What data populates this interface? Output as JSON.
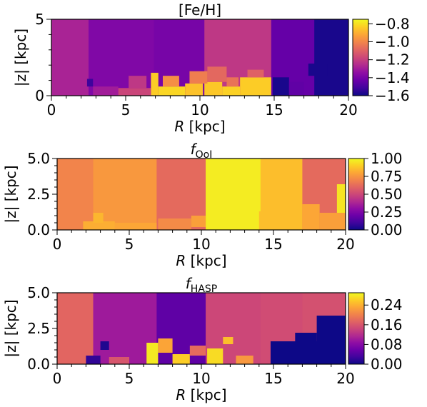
{
  "colormap": {
    "name": "plasma",
    "stops": [
      "#0d0887",
      "#41049d",
      "#6a00a8",
      "#8f0da4",
      "#b12a90",
      "#cc4778",
      "#e16462",
      "#f2844b",
      "#fca636",
      "#fcce25",
      "#f0f921"
    ]
  },
  "chart_data": [
    {
      "type": "heatmap",
      "title": "[Fe/H]",
      "xlabel": "R [kpc]",
      "ylabel": "|z| [kpc]",
      "xlim": [
        0,
        20
      ],
      "ylim": [
        0,
        5
      ],
      "x_ticks": [
        "0",
        "5",
        "10",
        "15",
        "20"
      ],
      "y_ticks": [
        "0",
        "5"
      ],
      "colorbar": {
        "min": -1.6,
        "max": -0.75,
        "ticks": [
          "−0.8",
          "−1.0",
          "−1.2",
          "−1.4",
          "−1.6"
        ],
        "tick_values": [
          -0.8,
          -1.0,
          -1.2,
          -1.4,
          -1.6
        ]
      },
      "columns": [
        {
          "r": [
            0,
            2.5
          ],
          "value": -1.28
        },
        {
          "r": [
            2.5,
            6.9
          ],
          "value": -1.38
        },
        {
          "r": [
            6.9,
            10.3
          ],
          "value": -1.4
        },
        {
          "r": [
            10.3,
            14.8
          ],
          "value": -1.22
        },
        {
          "r": [
            14.8,
            17.7
          ],
          "value": -1.44
        },
        {
          "r": [
            17.7,
            20
          ],
          "value": -1.58
        }
      ],
      "cells": [
        {
          "r": [
            17.3,
            18.6
          ],
          "z": [
            1.3,
            2.1
          ],
          "value": -1.58
        },
        {
          "r": [
            14.9,
            16.0
          ],
          "z": [
            0,
            1.2
          ],
          "value": -1.58
        },
        {
          "r": [
            16.0,
            17.0
          ],
          "z": [
            0,
            0.9
          ],
          "value": -1.45
        },
        {
          "r": [
            2.4,
            2.8
          ],
          "z": [
            0.6,
            1.1
          ],
          "value": -1.52
        },
        {
          "r": [
            6.7,
            7.2
          ],
          "z": [
            0,
            1.5
          ],
          "value": -0.84
        },
        {
          "r": [
            7.2,
            9.0
          ],
          "z": [
            0,
            0.6
          ],
          "value": -0.82
        },
        {
          "r": [
            9.0,
            10.2
          ],
          "z": [
            0,
            0.8
          ],
          "value": -0.86
        },
        {
          "r": [
            10.3,
            11.5
          ],
          "z": [
            0,
            0.9
          ],
          "value": -0.85
        },
        {
          "r": [
            11.5,
            12.7
          ],
          "z": [
            0,
            0.6
          ],
          "value": -0.83
        },
        {
          "r": [
            12.7,
            14.8
          ],
          "z": [
            0,
            1.2
          ],
          "value": -0.84
        },
        {
          "r": [
            4.5,
            6.7
          ],
          "z": [
            0,
            0.5
          ],
          "value": -1.18
        },
        {
          "r": [
            5.2,
            6.4
          ],
          "z": [
            0.5,
            1.3
          ],
          "value": -1.22
        },
        {
          "r": [
            7.5,
            8.6
          ],
          "z": [
            0.6,
            1.3
          ],
          "value": -0.98
        },
        {
          "r": [
            9.3,
            10.5
          ],
          "z": [
            0.8,
            1.6
          ],
          "value": -1.02
        },
        {
          "r": [
            10.5,
            11.8
          ],
          "z": [
            0.9,
            1.9
          ],
          "value": -1.08
        },
        {
          "r": [
            11.8,
            12.6
          ],
          "z": [
            0.6,
            1.2
          ],
          "value": -1.05
        },
        {
          "r": [
            13.2,
            14.3
          ],
          "z": [
            1.2,
            1.7
          ],
          "value": -1.1
        },
        {
          "r": [
            2.8,
            4.5
          ],
          "z": [
            0,
            0.6
          ],
          "value": -1.3
        }
      ]
    },
    {
      "type": "heatmap",
      "title": "f_OoI",
      "xlabel": "R [kpc]",
      "ylabel": "|z| [kpc]",
      "xlim": [
        0,
        20
      ],
      "ylim": [
        0,
        5
      ],
      "x_ticks": [
        "0",
        "5",
        "10",
        "15",
        "20"
      ],
      "y_ticks": [
        "0.0",
        "2.5",
        "5.0"
      ],
      "colorbar": {
        "min": 0.0,
        "max": 1.0,
        "ticks": [
          "1.00",
          "0.75",
          "0.50",
          "0.25",
          "0.00"
        ],
        "tick_values": [
          1.0,
          0.75,
          0.5,
          0.25,
          0.0
        ]
      },
      "columns": [
        {
          "r": [
            0,
            2.5
          ],
          "value": 0.7
        },
        {
          "r": [
            2.5,
            6.9
          ],
          "value": 0.76
        },
        {
          "r": [
            6.9,
            10.3
          ],
          "value": 0.62
        },
        {
          "r": [
            10.3,
            14.1
          ],
          "value": 0.97
        },
        {
          "r": [
            14.1,
            17.0
          ],
          "value": 0.86
        },
        {
          "r": [
            17.0,
            20
          ],
          "value": 0.62
        }
      ],
      "cells": [
        {
          "r": [
            17.0,
            18.2
          ],
          "z": [
            0,
            1.8
          ],
          "value": 0.8
        },
        {
          "r": [
            18.2,
            20.0
          ],
          "z": [
            0,
            1.2
          ],
          "value": 0.78
        },
        {
          "r": [
            19.4,
            20.0
          ],
          "z": [
            1.2,
            3.2
          ],
          "value": 0.95
        },
        {
          "r": [
            14.0,
            15.0
          ],
          "z": [
            0,
            1.3
          ],
          "value": 0.86
        },
        {
          "r": [
            1.8,
            4.0
          ],
          "z": [
            0,
            0.6
          ],
          "value": 0.82
        },
        {
          "r": [
            4.0,
            6.9
          ],
          "z": [
            0,
            0.5
          ],
          "value": 0.8
        },
        {
          "r": [
            7.0,
            9.3
          ],
          "z": [
            0,
            0.8
          ],
          "value": 0.72
        },
        {
          "r": [
            2.5,
            3.2
          ],
          "z": [
            0.5,
            1.2
          ],
          "value": 0.84
        },
        {
          "r": [
            9.3,
            10.3
          ],
          "z": [
            0.2,
            1.0
          ],
          "value": 0.78
        }
      ]
    },
    {
      "type": "heatmap",
      "title": "f_HASP",
      "xlabel": "R [kpc]",
      "ylabel": "|z| [kpc]",
      "xlim": [
        0,
        20
      ],
      "ylim": [
        0,
        5
      ],
      "x_ticks": [
        "0",
        "5",
        "10",
        "15",
        "20"
      ],
      "y_ticks": [
        "0.0",
        "2.5",
        "5.0"
      ],
      "colorbar": {
        "min": 0.0,
        "max": 0.29,
        "ticks": [
          "0.24",
          "0.16",
          "0.08",
          "0.00"
        ],
        "tick_values": [
          0.24,
          0.16,
          0.08,
          0.0
        ]
      },
      "columns": [
        {
          "r": [
            0,
            2.5
          ],
          "value": 0.175
        },
        {
          "r": [
            2.5,
            6.9
          ],
          "value": 0.1
        },
        {
          "r": [
            6.9,
            10.3
          ],
          "value": 0.05
        },
        {
          "r": [
            10.3,
            14.1
          ],
          "value": 0.145
        },
        {
          "r": [
            14.1,
            17.0
          ],
          "value": 0.15
        },
        {
          "r": [
            17.0,
            20
          ],
          "value": 0.155
        }
      ],
      "cells": [
        {
          "r": [
            14.8,
            20.0
          ],
          "z": [
            0,
            1.6
          ],
          "value": 0.0
        },
        {
          "r": [
            16.5,
            18.0
          ],
          "z": [
            1.6,
            2.2
          ],
          "value": 0.0
        },
        {
          "r": [
            18.0,
            20.0
          ],
          "z": [
            1.6,
            3.4
          ],
          "value": 0.0
        },
        {
          "r": [
            2.0,
            3.0
          ],
          "z": [
            0,
            0.6
          ],
          "value": 0.02
        },
        {
          "r": [
            3.0,
            3.6
          ],
          "z": [
            1.0,
            1.6
          ],
          "value": 0.01
        },
        {
          "r": [
            3.6,
            5.0
          ],
          "z": [
            0,
            0.5
          ],
          "value": 0.16
        },
        {
          "r": [
            6.2,
            7.0
          ],
          "z": [
            0,
            1.5
          ],
          "value": 0.28
        },
        {
          "r": [
            7.0,
            8.0
          ],
          "z": [
            0.8,
            1.8
          ],
          "value": 0.23
        },
        {
          "r": [
            8.0,
            9.2
          ],
          "z": [
            0,
            0.7
          ],
          "value": 0.26
        },
        {
          "r": [
            10.4,
            11.5
          ],
          "z": [
            0,
            1.1
          ],
          "value": 0.27
        },
        {
          "r": [
            11.5,
            12.2
          ],
          "z": [
            1.4,
            1.9
          ],
          "value": 0.25
        },
        {
          "r": [
            12.4,
            13.6
          ],
          "z": [
            0,
            0.6
          ],
          "value": 0.22
        },
        {
          "r": [
            9.2,
            10.3
          ],
          "z": [
            0.6,
            1.3
          ],
          "value": 0.18
        }
      ]
    }
  ]
}
